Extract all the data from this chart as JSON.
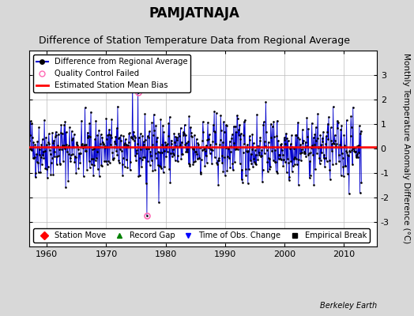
{
  "title": "PAMJATNAJA",
  "subtitle": "Difference of Station Temperature Data from Regional Average",
  "ylabel": "Monthly Temperature Anomaly Difference (°C)",
  "xlabel_years": [
    1960,
    1970,
    1980,
    1990,
    2000,
    2010
  ],
  "xlim": [
    1957.0,
    2015.5
  ],
  "ylim": [
    -4,
    4
  ],
  "yticks": [
    -3,
    -2,
    -1,
    0,
    1,
    2,
    3
  ],
  "mean_bias": 0.07,
  "line_color": "#0000cc",
  "bias_color": "#ff0000",
  "qc_color": "#ff69b4",
  "background_color": "#d8d8d8",
  "plot_bg_color": "#ffffff",
  "grid_color": "#bbbbbb",
  "seed": 42,
  "n_points": 672,
  "start_year": 1957.0,
  "qc_failed_indices": [
    220,
    238
  ],
  "qc_failed_values": [
    2.28,
    -2.75
  ],
  "title_fontsize": 12,
  "subtitle_fontsize": 9,
  "tick_fontsize": 8,
  "watermark": "Berkeley Earth"
}
